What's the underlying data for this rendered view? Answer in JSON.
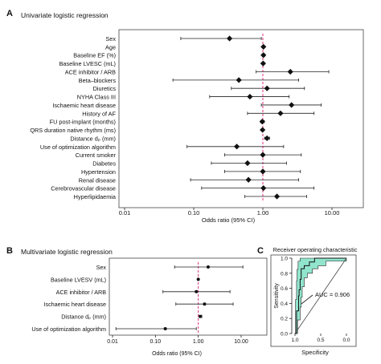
{
  "panels": {
    "a": {
      "letter": "A",
      "title": "Univariate logistic regression"
    },
    "b": {
      "letter": "B",
      "title": "Multivariate logistic regression"
    },
    "c": {
      "letter": "C",
      "title": "Receiver operating characteristic"
    }
  },
  "chart_data": [
    {
      "type": "forest",
      "panel": "A",
      "title": "Univariate logistic regression",
      "xlabel": "Odds ratio (95% CI)",
      "xscale": "log",
      "xlim": [
        0.01,
        10
      ],
      "xticks": [
        "0.01",
        "0.10",
        "1.00",
        "10.00"
      ],
      "xtick_values": [
        0.01,
        0.1,
        1,
        10
      ],
      "reference_line": 1,
      "rows": [
        {
          "label": "Sex",
          "or": 0.33,
          "lo": 0.065,
          "hi": 0.95
        },
        {
          "label": "Age",
          "or": 1.02,
          "lo": 0.99,
          "hi": 1.06
        },
        {
          "label": "Baseline EF (%)",
          "or": 1.02,
          "lo": 0.98,
          "hi": 1.07
        },
        {
          "label": "Baseline LVESC (mL)",
          "or": 1.01,
          "lo": 0.99,
          "hi": 1.03
        },
        {
          "label": "ACE inhibitor / ARB",
          "or": 2.5,
          "lo": 0.8,
          "hi": 9.0
        },
        {
          "label": "Beta–blockers",
          "or": 0.45,
          "lo": 0.05,
          "hi": 3.3
        },
        {
          "label": "Diuretics",
          "or": 1.15,
          "lo": 0.35,
          "hi": 4.0
        },
        {
          "label": "NYHA Class III",
          "or": 0.65,
          "lo": 0.17,
          "hi": 2.4
        },
        {
          "label": "Ischaemic heart disease",
          "or": 2.6,
          "lo": 0.95,
          "hi": 7.0
        },
        {
          "label": "History of AF",
          "or": 1.8,
          "lo": 0.6,
          "hi": 5.5
        },
        {
          "label": "FU post-implant (months)",
          "or": 0.98,
          "lo": 0.93,
          "hi": 1.05
        },
        {
          "label": "QRS duration native rhythm (ms)",
          "or": 0.99,
          "lo": 0.97,
          "hi": 1.02
        },
        {
          "label": "Distance dₚ (mm)",
          "or": 1.15,
          "lo": 1.06,
          "hi": 1.25
        },
        {
          "label": "Use of optimization algorithm",
          "or": 0.42,
          "lo": 0.08,
          "hi": 2.0
        },
        {
          "label": "Current smoker",
          "or": 1.0,
          "lo": 0.28,
          "hi": 3.6
        },
        {
          "label": "Diabetes",
          "or": 0.6,
          "lo": 0.18,
          "hi": 2.2
        },
        {
          "label": "Hypertension",
          "or": 1.0,
          "lo": 0.28,
          "hi": 3.5
        },
        {
          "label": "Renal disease",
          "or": 0.62,
          "lo": 0.09,
          "hi": 3.3
        },
        {
          "label": "Cerebrovascular disease",
          "or": 1.02,
          "lo": 0.13,
          "hi": 5.5
        },
        {
          "label": "Hyperlipidaemia",
          "or": 1.6,
          "lo": 0.55,
          "hi": 4.3
        }
      ]
    },
    {
      "type": "forest",
      "panel": "B",
      "title": "Multivariate logistic regression",
      "xlabel": "Odds ratio (95% CI)",
      "xscale": "log",
      "xlim": [
        0.01,
        10
      ],
      "xticks": [
        "0.01",
        "0.10",
        "1.00",
        "10.00"
      ],
      "xtick_values": [
        0.01,
        0.1,
        1,
        10
      ],
      "reference_line": 1,
      "rows": [
        {
          "label": "Sex",
          "or": 1.7,
          "lo": 0.28,
          "hi": 11.0
        },
        {
          "label": "Baseline LVESV (mL)",
          "or": 1.0,
          "lo": 0.98,
          "hi": 1.03
        },
        {
          "label": "ACE inhibitor / ARB",
          "or": 0.9,
          "lo": 0.15,
          "hi": 5.5
        },
        {
          "label": "Ischaemic heart disease",
          "or": 1.4,
          "lo": 0.3,
          "hi": 6.5
        },
        {
          "label": "Distance dₚ (mm)",
          "or": 1.12,
          "lo": 1.04,
          "hi": 1.21
        },
        {
          "label": "Use of optimization algorithm",
          "or": 0.17,
          "lo": 0.012,
          "hi": 0.9
        }
      ]
    },
    {
      "type": "roc",
      "panel": "C",
      "title": "Receiver operating characteristic",
      "xlabel": "Specificity",
      "ylabel": "Sensitivity",
      "xlim": [
        1.0,
        0.0
      ],
      "ylim": [
        0.0,
        1.0
      ],
      "xticks": [
        "1.0",
        "0.5",
        "0.0"
      ],
      "yticks": [
        "0.0",
        "0.2",
        "0.4",
        "0.6",
        "0.8",
        "1.0"
      ],
      "annotation": "AUC = 0.906",
      "ci_color": "#7fe0c4",
      "roc_curve": [
        [
          1.0,
          0.0
        ],
        [
          0.97,
          0.0
        ],
        [
          0.97,
          0.3
        ],
        [
          0.93,
          0.3
        ],
        [
          0.93,
          0.5
        ],
        [
          0.92,
          0.5
        ],
        [
          0.92,
          0.58
        ],
        [
          0.9,
          0.58
        ],
        [
          0.9,
          0.72
        ],
        [
          0.88,
          0.72
        ],
        [
          0.88,
          0.86
        ],
        [
          0.82,
          0.86
        ],
        [
          0.82,
          0.9
        ],
        [
          0.72,
          0.9
        ],
        [
          0.72,
          0.95
        ],
        [
          0.62,
          0.95
        ],
        [
          0.62,
          1.0
        ],
        [
          0.0,
          1.0
        ]
      ],
      "ci_upper": [
        [
          1.0,
          0.0
        ],
        [
          0.99,
          0.0
        ],
        [
          0.99,
          0.45
        ],
        [
          0.97,
          0.45
        ],
        [
          0.97,
          0.7
        ],
        [
          0.96,
          0.7
        ],
        [
          0.96,
          0.85
        ],
        [
          0.94,
          0.85
        ],
        [
          0.94,
          0.96
        ],
        [
          0.9,
          0.96
        ],
        [
          0.9,
          1.0
        ],
        [
          0.0,
          1.0
        ]
      ],
      "ci_lower": [
        [
          0.95,
          0.0
        ],
        [
          0.95,
          0.18
        ],
        [
          0.9,
          0.18
        ],
        [
          0.9,
          0.35
        ],
        [
          0.88,
          0.35
        ],
        [
          0.88,
          0.48
        ],
        [
          0.86,
          0.48
        ],
        [
          0.86,
          0.62
        ],
        [
          0.82,
          0.62
        ],
        [
          0.82,
          0.74
        ],
        [
          0.76,
          0.74
        ],
        [
          0.76,
          0.8
        ],
        [
          0.66,
          0.8
        ],
        [
          0.66,
          0.86
        ],
        [
          0.55,
          0.86
        ],
        [
          0.55,
          0.9
        ],
        [
          0.4,
          0.9
        ],
        [
          0.4,
          0.96
        ],
        [
          0.0,
          0.96
        ]
      ]
    }
  ]
}
